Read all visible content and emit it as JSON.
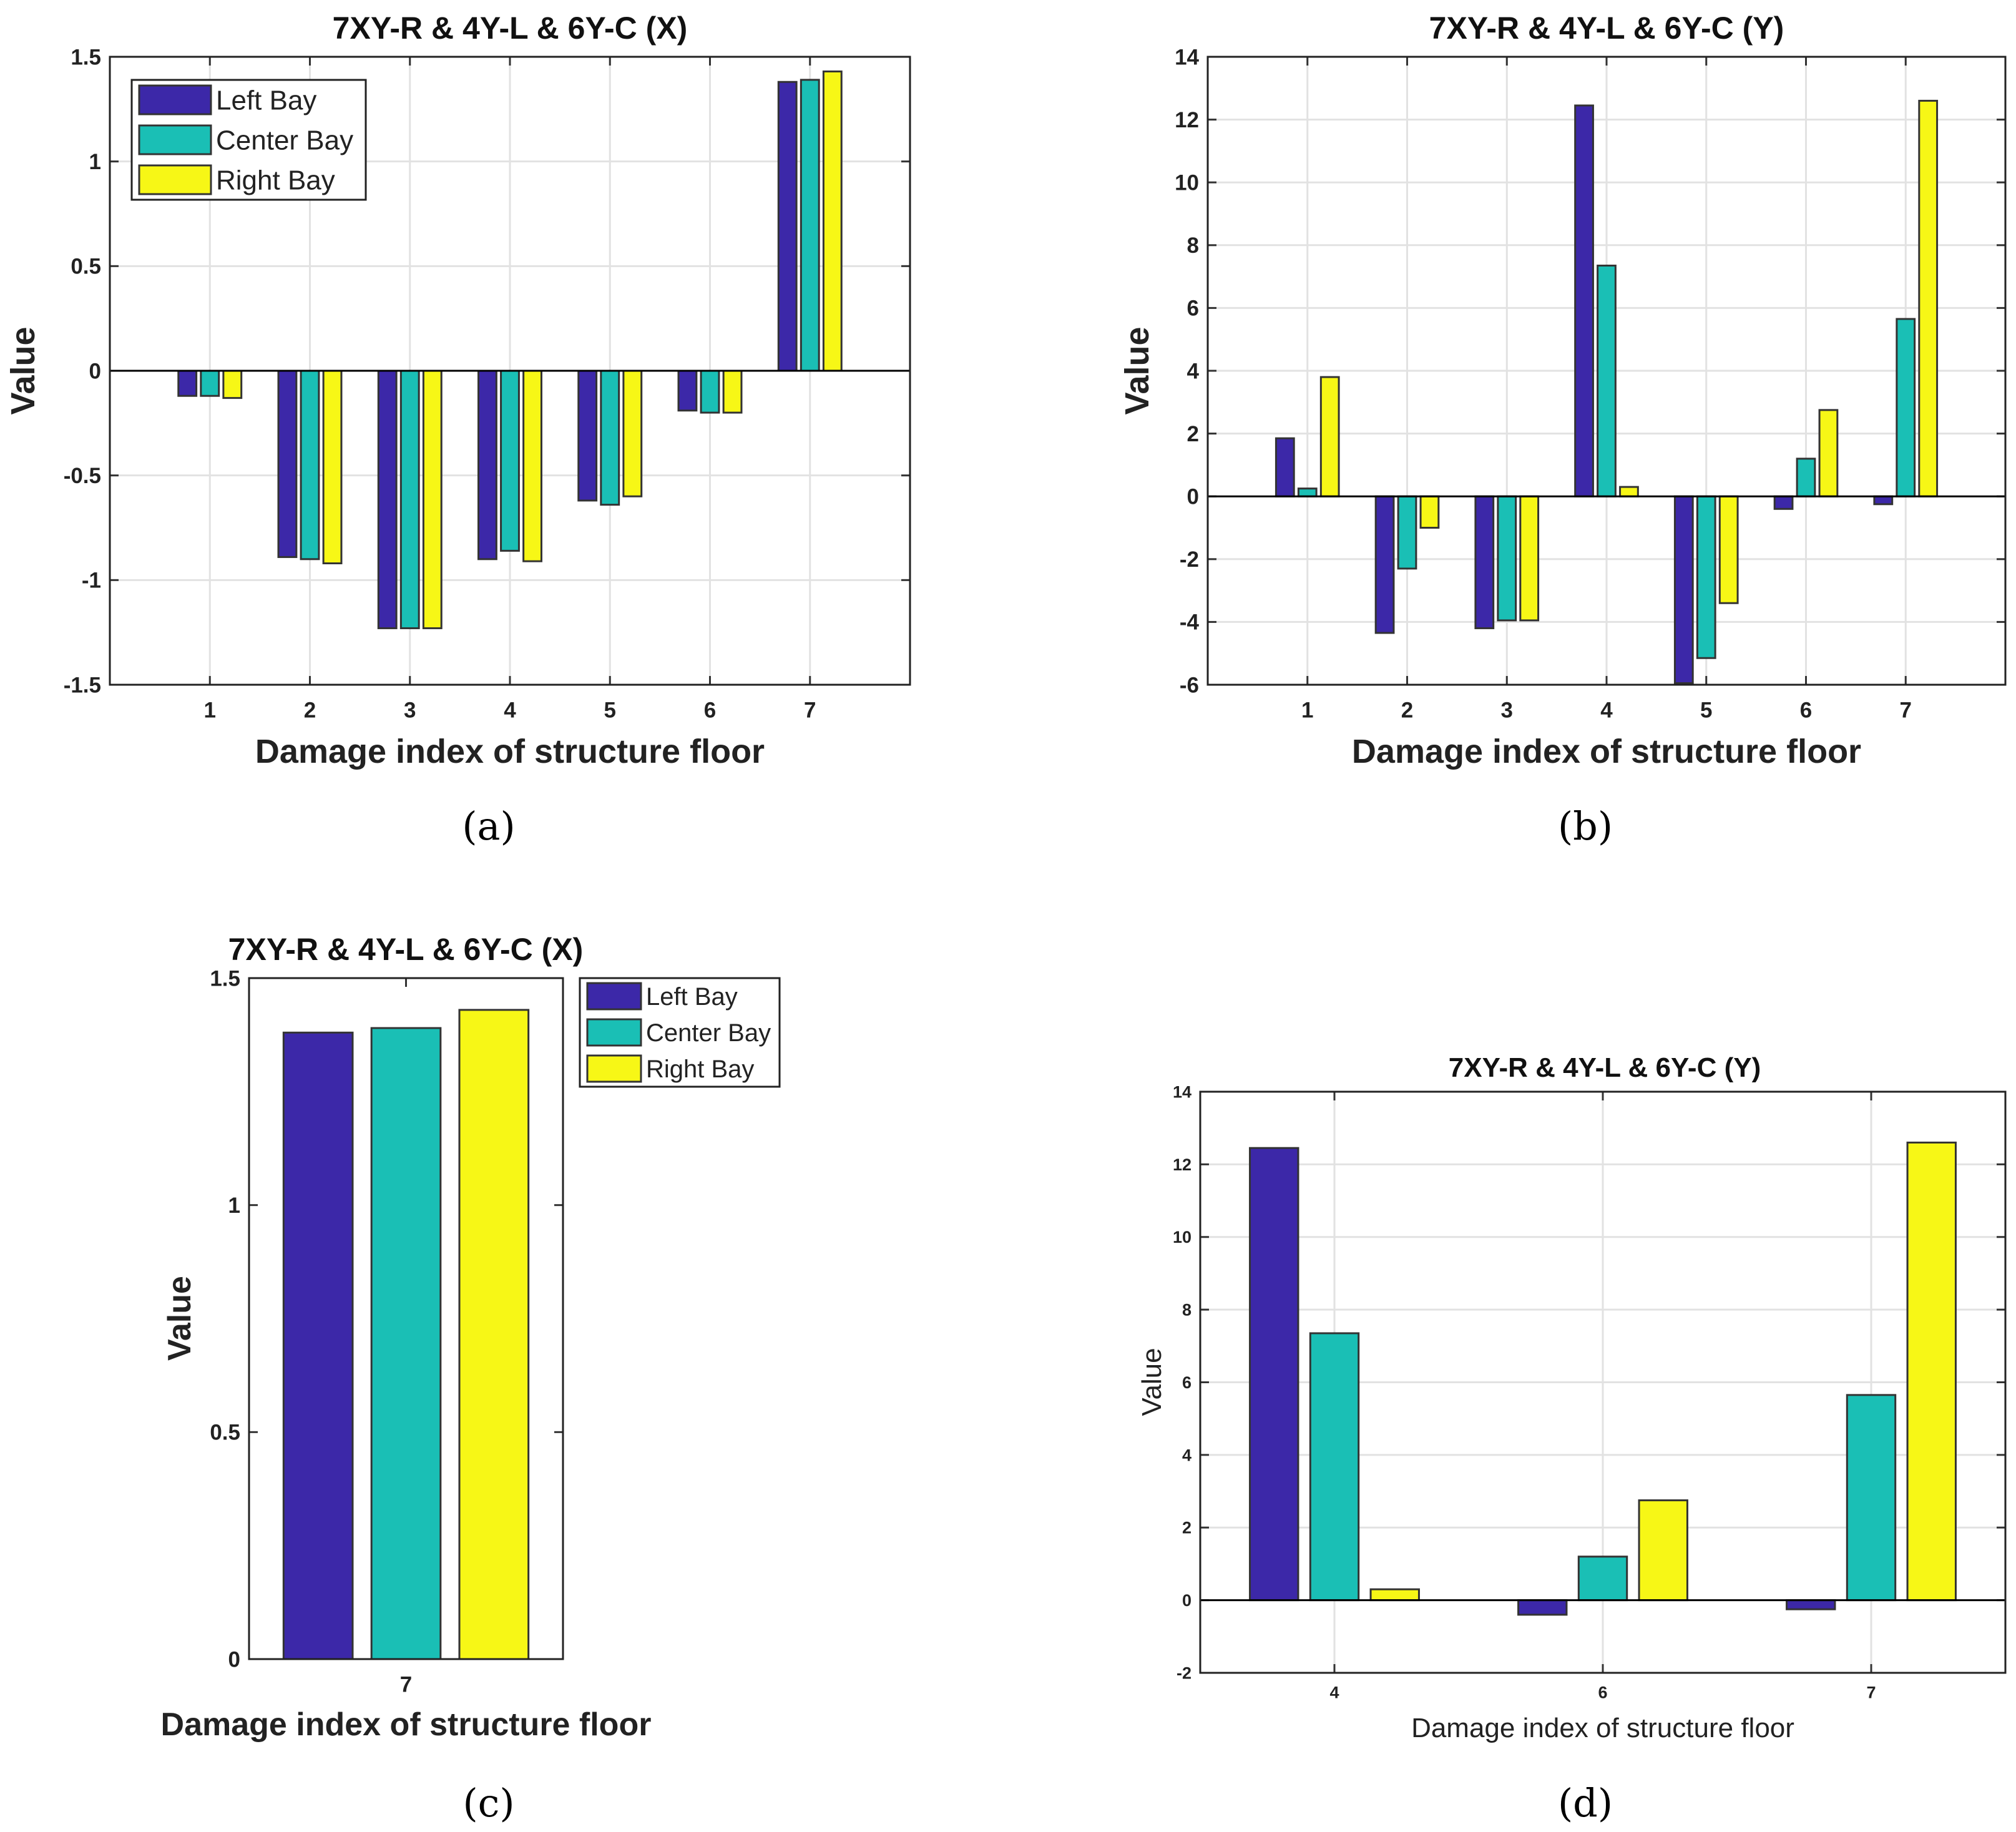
{
  "colors": {
    "left": "#3c28a8",
    "center": "#1abfb5",
    "right": "#f7f716"
  },
  "legend": [
    "Left Bay",
    "Center Bay",
    "Right Bay"
  ],
  "chart_data": [
    {
      "id": "a",
      "caption": "(a)",
      "type": "bar",
      "title": "7XY-R & 4Y-L & 6Y-C (X)",
      "xlabel": "Damage index of structure floor",
      "ylabel": "Value",
      "categories": [
        "1",
        "2",
        "3",
        "4",
        "5",
        "6",
        "7"
      ],
      "ylim": [
        -1.5,
        1.5
      ],
      "yticks": [
        "-1.5",
        "-1",
        "-0.5",
        "0",
        "0.5",
        "1",
        "1.5"
      ],
      "grid": true,
      "legend_position": "top-left",
      "series": [
        {
          "name": "Left Bay",
          "values": [
            -0.12,
            -0.89,
            -1.23,
            -0.9,
            -0.62,
            -0.19,
            1.38
          ]
        },
        {
          "name": "Center Bay",
          "values": [
            -0.12,
            -0.9,
            -1.23,
            -0.86,
            -0.64,
            -0.2,
            1.39
          ]
        },
        {
          "name": "Right Bay",
          "values": [
            -0.13,
            -0.92,
            -1.23,
            -0.91,
            -0.6,
            -0.2,
            1.43
          ]
        }
      ]
    },
    {
      "id": "b",
      "caption": "(b)",
      "type": "bar",
      "title": "7XY-R & 4Y-L & 6Y-C (Y)",
      "xlabel": "Damage index of structure floor",
      "ylabel": "Value",
      "categories": [
        "1",
        "2",
        "3",
        "4",
        "5",
        "6",
        "7"
      ],
      "ylim": [
        -6,
        14
      ],
      "yticks": [
        "-6",
        "-4",
        "-2",
        "0",
        "2",
        "4",
        "6",
        "8",
        "10",
        "12",
        "14"
      ],
      "grid": true,
      "series": [
        {
          "name": "Left Bay",
          "values": [
            1.85,
            -4.35,
            -4.2,
            12.45,
            -5.95,
            -0.4,
            -0.25
          ]
        },
        {
          "name": "Center Bay",
          "values": [
            0.25,
            -2.3,
            -3.95,
            7.35,
            -5.15,
            1.2,
            5.65
          ]
        },
        {
          "name": "Right Bay",
          "values": [
            3.8,
            -1.0,
            -3.95,
            0.3,
            -3.4,
            2.75,
            12.6
          ]
        }
      ]
    },
    {
      "id": "c",
      "caption": "(c)",
      "type": "bar",
      "title": "7XY-R & 4Y-L & 6Y-C (X)",
      "xlabel": "Damage index of structure floor",
      "ylabel": "Value",
      "categories": [
        "7"
      ],
      "ylim": [
        0,
        1.5
      ],
      "yticks": [
        "0",
        "0.5",
        "1",
        "1.5"
      ],
      "grid": false,
      "legend_position": "outside-right",
      "series": [
        {
          "name": "Left Bay",
          "values": [
            1.38
          ]
        },
        {
          "name": "Center Bay",
          "values": [
            1.39
          ]
        },
        {
          "name": "Right Bay",
          "values": [
            1.43
          ]
        }
      ]
    },
    {
      "id": "d",
      "caption": "(d)",
      "type": "bar",
      "title": "7XY-R & 4Y-L & 6Y-C (Y)",
      "xlabel": "Damage index of structure floor",
      "ylabel": "Value",
      "categories": [
        "4",
        "6",
        "7"
      ],
      "ylim": [
        -2,
        14
      ],
      "yticks": [
        "-2",
        "0",
        "2",
        "4",
        "6",
        "8",
        "10",
        "12",
        "14"
      ],
      "grid": true,
      "series": [
        {
          "name": "Left Bay",
          "values": [
            12.45,
            -0.4,
            -0.25
          ]
        },
        {
          "name": "Center Bay",
          "values": [
            7.35,
            1.2,
            5.65
          ]
        },
        {
          "name": "Right Bay",
          "values": [
            0.3,
            2.75,
            12.6
          ]
        }
      ]
    }
  ]
}
